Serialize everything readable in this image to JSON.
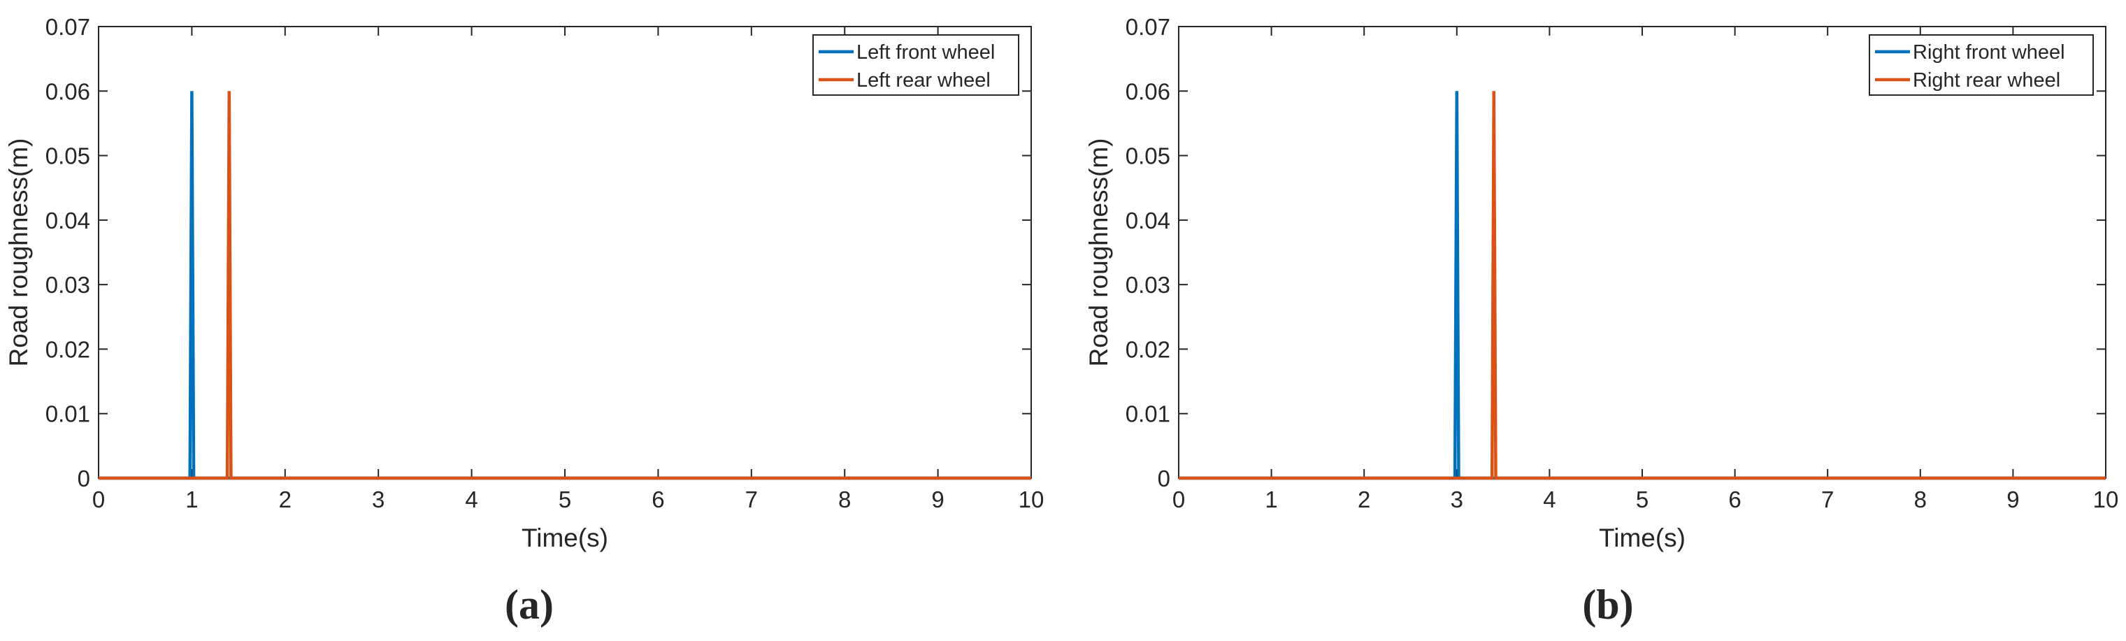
{
  "chart_data": [
    {
      "type": "line",
      "panel_label": "(a)",
      "xlabel": "Time(s)",
      "ylabel": "Road roughness(m)",
      "xlim": [
        0,
        10
      ],
      "ylim": [
        0,
        0.07
      ],
      "xticks": [
        "0",
        "1",
        "2",
        "3",
        "4",
        "5",
        "6",
        "7",
        "8",
        "9",
        "10"
      ],
      "yticks": [
        "0",
        "0.01",
        "0.02",
        "0.03",
        "0.04",
        "0.05",
        "0.06",
        "0.07"
      ],
      "legend_position": "top-right",
      "grid": false,
      "series": [
        {
          "name": "Left front wheel",
          "color": "#0072BD",
          "x": [
            0,
            0.98,
            1.0,
            1.02,
            10
          ],
          "y": [
            0,
            0,
            0.06,
            0,
            0
          ]
        },
        {
          "name": "Left rear wheel",
          "color": "#D95319",
          "x": [
            0,
            1.38,
            1.4,
            1.42,
            10
          ],
          "y": [
            0,
            0,
            0.06,
            0,
            0
          ]
        }
      ]
    },
    {
      "type": "line",
      "panel_label": "(b)",
      "xlabel": "Time(s)",
      "ylabel": "Road roughness(m)",
      "xlim": [
        0,
        10
      ],
      "ylim": [
        0,
        0.07
      ],
      "xticks": [
        "0",
        "1",
        "2",
        "3",
        "4",
        "5",
        "6",
        "7",
        "8",
        "9",
        "10"
      ],
      "yticks": [
        "0",
        "0.01",
        "0.02",
        "0.03",
        "0.04",
        "0.05",
        "0.06",
        "0.07"
      ],
      "legend_position": "top-right",
      "grid": false,
      "series": [
        {
          "name": "Right front wheel",
          "color": "#0072BD",
          "x": [
            0,
            2.98,
            3.0,
            3.02,
            10
          ],
          "y": [
            0,
            0,
            0.06,
            0,
            0
          ]
        },
        {
          "name": "Right rear wheel",
          "color": "#D95319",
          "x": [
            0,
            3.38,
            3.4,
            3.42,
            10
          ],
          "y": [
            0,
            0,
            0.06,
            0,
            0
          ]
        }
      ]
    }
  ]
}
